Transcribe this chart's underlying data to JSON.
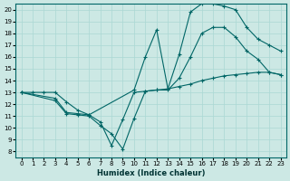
{
  "xlabel": "Humidex (Indice chaleur)",
  "bg_color": "#cce8e4",
  "line_color": "#006666",
  "xlim": [
    -0.5,
    23.5
  ],
  "ylim": [
    7.5,
    20.5
  ],
  "xticks": [
    0,
    1,
    2,
    3,
    4,
    5,
    6,
    7,
    8,
    9,
    10,
    11,
    12,
    13,
    14,
    15,
    16,
    17,
    18,
    19,
    20,
    21,
    22,
    23
  ],
  "yticks": [
    8,
    9,
    10,
    11,
    12,
    13,
    14,
    15,
    16,
    17,
    18,
    19,
    20
  ],
  "line1_x": [
    0,
    1,
    2,
    3,
    4,
    5,
    6,
    7,
    8,
    9,
    10,
    11,
    12,
    13,
    14,
    15,
    16,
    17,
    18,
    19,
    20,
    21,
    22,
    23
  ],
  "line1_y": [
    13,
    13,
    13,
    13,
    12.2,
    11.5,
    11.1,
    10.5,
    8.5,
    10.7,
    13.0,
    13.1,
    13.2,
    13.3,
    13.5,
    13.7,
    14.0,
    14.2,
    14.4,
    14.5,
    14.6,
    14.7,
    14.7,
    14.5
  ],
  "line2_x": [
    0,
    3,
    4,
    5,
    6,
    10,
    11,
    12,
    13,
    14,
    15,
    16,
    17,
    18,
    19,
    20,
    21,
    22,
    23
  ],
  "line2_y": [
    13,
    12.5,
    11.3,
    11.2,
    11.1,
    13.2,
    16.0,
    18.3,
    13.3,
    16.2,
    19.8,
    20.5,
    20.5,
    20.3,
    20.0,
    18.5,
    17.5,
    17.0,
    16.5
  ],
  "line3_x": [
    0,
    3,
    4,
    5,
    6,
    7,
    8,
    9,
    10,
    11,
    12,
    13,
    14,
    15,
    16,
    17,
    18,
    19,
    20,
    21,
    22,
    23
  ],
  "line3_y": [
    13,
    12.3,
    11.2,
    11.1,
    11.0,
    10.2,
    9.5,
    8.2,
    10.8,
    13.1,
    13.2,
    13.2,
    14.2,
    16.0,
    18.0,
    18.5,
    18.5,
    17.7,
    16.5,
    15.8,
    14.7,
    14.5
  ]
}
